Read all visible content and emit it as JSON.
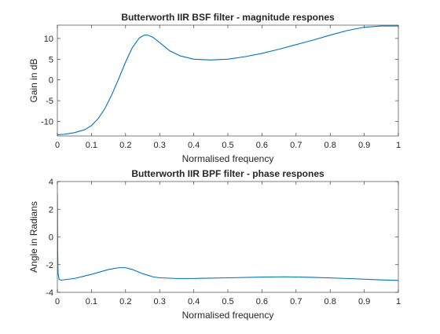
{
  "chart_data": [
    {
      "type": "line",
      "title": "Butterworth IIR BSF filter - magnitude respones",
      "xlabel": "Normalised frequency",
      "ylabel": "Gain in dB",
      "xlim": [
        0,
        1
      ],
      "ylim": [
        -13.5,
        13.2
      ],
      "xticks": [
        0,
        0.1,
        0.2,
        0.3,
        0.4,
        0.5,
        0.6,
        0.7,
        0.8,
        0.9,
        1
      ],
      "yticks": [
        -10,
        -5,
        0,
        5,
        10
      ],
      "grid": false,
      "line_color": "#0072BD",
      "series": [
        {
          "x": [
            0,
            0.02,
            0.05,
            0.08,
            0.1,
            0.12,
            0.14,
            0.16,
            0.18,
            0.2,
            0.22,
            0.24,
            0.255,
            0.265,
            0.28,
            0.3,
            0.33,
            0.36,
            0.4,
            0.45,
            0.5,
            0.55,
            0.6,
            0.65,
            0.7,
            0.75,
            0.8,
            0.85,
            0.9,
            0.95,
            1.0
          ],
          "y": [
            -13.2,
            -13.1,
            -12.7,
            -12.0,
            -11.0,
            -9.3,
            -6.8,
            -3.5,
            0.3,
            4.3,
            7.8,
            10.1,
            10.8,
            10.8,
            10.3,
            9.0,
            7.0,
            5.8,
            5.0,
            4.8,
            5.0,
            5.6,
            6.4,
            7.4,
            8.5,
            9.6,
            10.8,
            11.9,
            12.7,
            13.0,
            13.0
          ]
        }
      ]
    },
    {
      "type": "line",
      "title": "Butterworth IIR BPF filter - phase respones",
      "xlabel": "Normalised frequency",
      "ylabel": "Angle in Radians",
      "xlim": [
        0,
        1
      ],
      "ylim": [
        -4,
        4
      ],
      "xticks": [
        0,
        0.1,
        0.2,
        0.3,
        0.4,
        0.5,
        0.6,
        0.7,
        0.8,
        0.9,
        1
      ],
      "yticks": [
        -4,
        -2,
        0,
        2,
        4
      ],
      "grid": false,
      "line_color": "#0072BD",
      "series": [
        {
          "x": [
            0,
            0.0005,
            0.001,
            0.002,
            0.005,
            0.01,
            0.05,
            0.1,
            0.15,
            0.18,
            0.2,
            0.22,
            0.25,
            0.28,
            0.3,
            0.35,
            0.4,
            0.5,
            0.6,
            0.67,
            0.75,
            0.85,
            0.95,
            1.0
          ],
          "y": [
            3.14,
            1.5,
            -1.0,
            -2.6,
            -3.05,
            -3.12,
            -3.0,
            -2.7,
            -2.35,
            -2.22,
            -2.22,
            -2.35,
            -2.65,
            -2.88,
            -2.95,
            -3.0,
            -3.0,
            -2.95,
            -2.9,
            -2.88,
            -2.92,
            -3.0,
            -3.1,
            -3.14
          ]
        }
      ]
    }
  ]
}
